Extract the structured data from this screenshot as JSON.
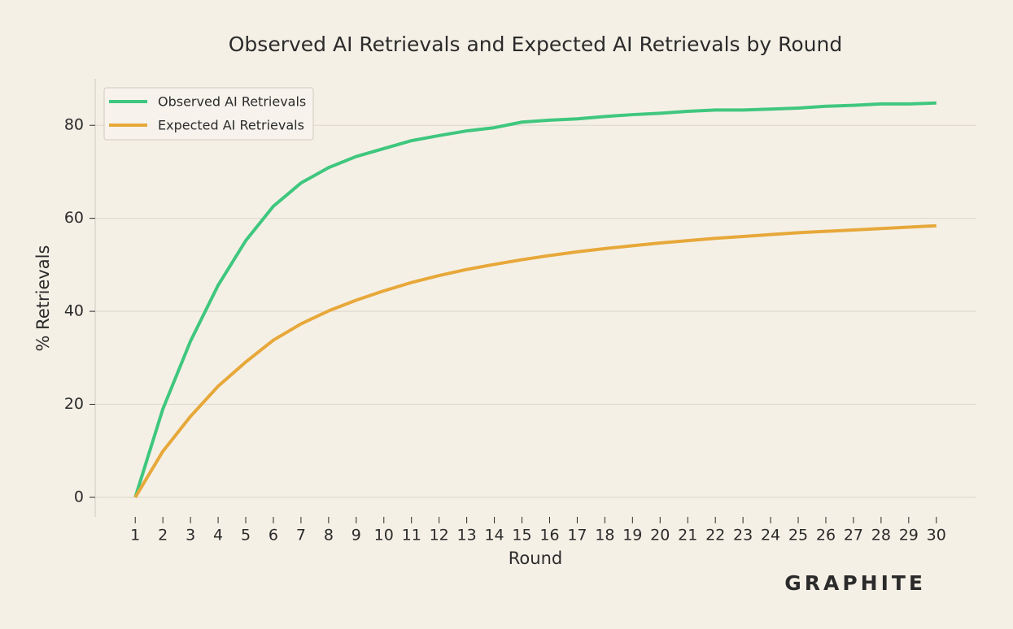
{
  "chart_data": {
    "type": "line",
    "title": "Observed AI Retrievals and Expected AI Retrievals by Round",
    "x_label": "Round",
    "y_label": "% Retrievals",
    "x": [
      1,
      2,
      3,
      4,
      5,
      6,
      7,
      8,
      9,
      10,
      11,
      12,
      13,
      14,
      15,
      16,
      17,
      18,
      19,
      20,
      21,
      22,
      23,
      24,
      25,
      26,
      27,
      28,
      29,
      30
    ],
    "series": [
      {
        "name": "Observed AI Retrievals",
        "color": "#3fc77e",
        "values": [
          0,
          19,
          33.6,
          45.6,
          55.2,
          62.6,
          67.6,
          70.9,
          73.3,
          75,
          76.7,
          77.8,
          78.8,
          79.5,
          80.7,
          81.1,
          81.4,
          81.9,
          82.3,
          82.6,
          83,
          83.3,
          83.3,
          83.5,
          83.7,
          84.1,
          84.3,
          84.6,
          84.6,
          84.8
        ]
      },
      {
        "name": "Expected AI Retrievals",
        "color": "#e7a83a",
        "values": [
          0,
          9.9,
          17.4,
          23.9,
          29.1,
          33.8,
          37.3,
          40.1,
          42.4,
          44.4,
          46.2,
          47.7,
          49,
          50.1,
          51.1,
          52,
          52.8,
          53.5,
          54.1,
          54.7,
          55.2,
          55.7,
          56.1,
          56.5,
          56.9,
          57.2,
          57.5,
          57.8,
          58.1,
          58.4
        ]
      }
    ],
    "xlim": [
      -0.45,
      31.45
    ],
    "xticks": [
      1,
      2,
      3,
      4,
      5,
      6,
      7,
      8,
      9,
      10,
      11,
      12,
      13,
      14,
      15,
      16,
      17,
      18,
      19,
      20,
      21,
      22,
      23,
      24,
      25,
      26,
      27,
      28,
      29,
      30
    ],
    "ylim": [
      -4.2,
      90
    ],
    "yticks": [
      0,
      20,
      40,
      60,
      80
    ],
    "grid": true,
    "legend": "upper left"
  },
  "logo": "GRAPHITE"
}
